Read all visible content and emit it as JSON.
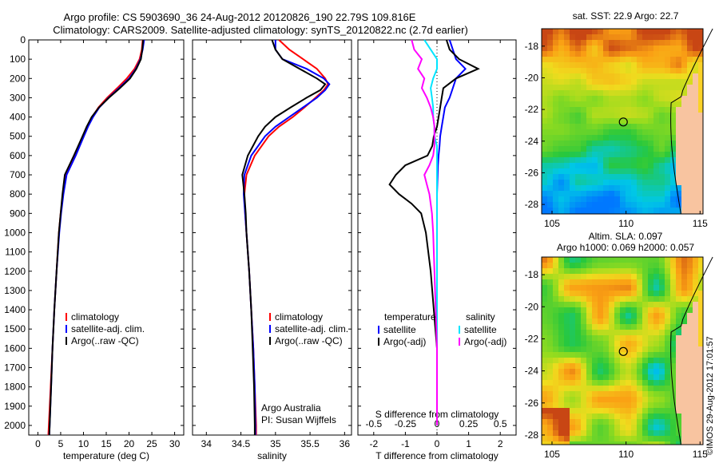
{
  "header": {
    "line1": "Argo profile: CS 5903690_36 24-Aug-2012 20120826_190 22.79S 109.816E",
    "line2": "Climatology: CARS2009. Satellite-adjusted climatology: synTS_20120822.nc (2.7d earlier)"
  },
  "chart_data": [
    {
      "type": "line",
      "xlabel": "temperature (deg C)",
      "ylabel": "",
      "xlim": [
        -2,
        32
      ],
      "ylim": [
        2050,
        0
      ],
      "xticks": [
        "0",
        "5",
        "10",
        "15",
        "20",
        "25",
        "30"
      ],
      "yticks": [
        "0",
        "100",
        "200",
        "300",
        "400",
        "500",
        "600",
        "700",
        "800",
        "900",
        "1000",
        "1100",
        "1200",
        "1300",
        "1400",
        "1500",
        "1600",
        "1700",
        "1800",
        "1900",
        "2000"
      ],
      "legend": [
        "climatology",
        "satellite-adj. clim.",
        "Argo(..raw -QC)"
      ],
      "colors": [
        "#ff0000",
        "#0000ff",
        "#000000"
      ],
      "depth": [
        0,
        50,
        100,
        150,
        200,
        250,
        300,
        350,
        400,
        450,
        500,
        600,
        700,
        800,
        900,
        1000,
        1200,
        1400,
        1600,
        1800,
        2000,
        2050
      ],
      "series": [
        {
          "name": "climatology",
          "values": [
            23.0,
            22.8,
            22.3,
            21.2,
            19.5,
            17.4,
            15.2,
            13.3,
            11.9,
            10.9,
            10.0,
            8.2,
            6.2,
            5.5,
            5.0,
            4.6,
            4.1,
            3.6,
            3.2,
            2.8,
            2.4,
            2.3
          ]
        },
        {
          "name": "satellite-adj. clim.",
          "values": [
            23.3,
            23.0,
            22.5,
            21.5,
            20.0,
            17.8,
            15.5,
            13.5,
            12.1,
            11.0,
            10.1,
            8.3,
            6.3,
            5.6,
            5.1,
            4.7,
            4.1,
            3.6,
            3.2,
            2.9,
            2.6,
            2.5
          ]
        },
        {
          "name": "Argo(..raw -QC)",
          "values": [
            23.1,
            22.9,
            22.6,
            21.6,
            20.2,
            18.0,
            15.6,
            13.4,
            11.8,
            10.7,
            9.8,
            7.9,
            5.9,
            5.4,
            5.0,
            4.6,
            4.1,
            3.6,
            3.2,
            2.9,
            2.6,
            2.5
          ]
        }
      ]
    },
    {
      "type": "line",
      "xlabel": "salinity",
      "xlim": [
        33.8,
        36.1
      ],
      "ylim": [
        2050,
        0
      ],
      "xticks": [
        "34",
        "34.5",
        "35",
        "35.5",
        "36"
      ],
      "legend": [
        "climatology",
        "satellite-adj. clim.",
        "Argo(..raw -QC)"
      ],
      "colors": [
        "#ff0000",
        "#0000ff",
        "#000000"
      ],
      "annotation": [
        "Argo Australia",
        "PI: Susan Wijffels"
      ],
      "depth": [
        0,
        50,
        100,
        150,
        200,
        230,
        260,
        300,
        350,
        400,
        450,
        500,
        600,
        700,
        800,
        900,
        1000,
        1200,
        1400,
        1600,
        1800,
        2000,
        2050
      ],
      "series": [
        {
          "name": "climatology",
          "values": [
            35.05,
            35.2,
            35.4,
            35.6,
            35.72,
            35.76,
            35.7,
            35.58,
            35.42,
            35.25,
            35.05,
            34.9,
            34.7,
            34.58,
            34.55,
            34.56,
            34.58,
            34.62,
            34.65,
            34.68,
            34.7,
            34.72,
            34.72
          ]
        },
        {
          "name": "satellite-adj. clim.",
          "values": [
            35.0,
            35.0,
            35.1,
            35.45,
            35.7,
            35.78,
            35.72,
            35.6,
            35.4,
            35.2,
            35.0,
            34.85,
            34.65,
            34.55,
            34.54,
            34.56,
            34.58,
            34.62,
            34.65,
            34.68,
            34.7,
            34.71,
            34.71
          ]
        },
        {
          "name": "Argo(..raw -QC)",
          "values": [
            34.95,
            35.0,
            35.1,
            35.35,
            35.6,
            35.72,
            35.65,
            35.45,
            35.22,
            35.0,
            34.85,
            34.75,
            34.6,
            34.52,
            34.55,
            34.57,
            34.58,
            34.62,
            34.65,
            34.67,
            34.69,
            34.7,
            34.7
          ]
        }
      ]
    },
    {
      "type": "line",
      "xlabel": "T difference from climatology",
      "xlabel_top": "S difference from climatology",
      "xlim": [
        -2.5,
        2.5
      ],
      "ylim": [
        2050,
        0
      ],
      "xticks_bottom": [
        "-2",
        "-1",
        "0",
        "1",
        "2"
      ],
      "xticks_top": [
        "-0.5",
        "-0.25",
        "0",
        "0.25",
        "0.5"
      ],
      "legend_titles": [
        "temperature",
        "salinity"
      ],
      "legend_left": [
        "satellite",
        "Argo(-adj)"
      ],
      "legend_right": [
        "satellite",
        "Argo(-adj)"
      ],
      "colors": [
        "#0000ff",
        "#000000",
        "#00e5ff",
        "#ff00ff"
      ],
      "depth": [
        0,
        50,
        100,
        150,
        200,
        250,
        300,
        350,
        400,
        450,
        500,
        550,
        600,
        650,
        700,
        750,
        800,
        850,
        900,
        1000,
        1200,
        1400,
        1600,
        1800,
        2000
      ],
      "series": [
        {
          "name": "T satellite",
          "values": [
            0.4,
            0.5,
            0.6,
            0.9,
            0.6,
            0.5,
            0.4,
            0.25,
            0.2,
            0.15,
            0.1,
            0.08,
            0.05,
            0.03,
            0.02,
            0.01,
            0.0,
            0.0,
            0.0,
            0.0,
            0.0,
            0.0,
            0.0,
            0.0,
            0.0
          ]
        },
        {
          "name": "T Argo(-adj)",
          "values": [
            0.3,
            0.4,
            0.7,
            1.3,
            0.6,
            0.2,
            0.15,
            0.1,
            0.05,
            0.0,
            -0.1,
            -0.15,
            -0.3,
            -1.0,
            -1.3,
            -1.5,
            -1.2,
            -0.8,
            -0.5,
            -0.35,
            -0.2,
            -0.1,
            0.0,
            0.0,
            0.0
          ]
        },
        {
          "name": "S satellite",
          "values": [
            -0.1,
            -0.05,
            0.0,
            0.0,
            -0.03,
            -0.05,
            -0.04,
            -0.03,
            -0.03,
            -0.02,
            -0.02,
            0.0,
            0.0,
            0.0,
            0.0,
            0.0,
            0.0,
            0.0,
            0.0,
            0.0,
            0.0,
            0.0,
            0.0,
            0.0,
            0.0
          ]
        },
        {
          "name": "S Argo(-adj)",
          "values": [
            -0.2,
            -0.18,
            -0.12,
            -0.15,
            -0.1,
            -0.12,
            -0.08,
            -0.05,
            -0.03,
            -0.02,
            -0.02,
            -0.02,
            -0.03,
            -0.06,
            -0.1,
            -0.08,
            -0.06,
            -0.05,
            -0.04,
            -0.03,
            -0.02,
            -0.01,
            0.0,
            0.0,
            0.0
          ]
        }
      ]
    },
    {
      "type": "heatmap",
      "title": "sat. SST: 22.9 Argo: 22.7",
      "xticks": [
        "105",
        "110",
        "115"
      ],
      "yticks": [
        "-18",
        "-20",
        "-22",
        "-24",
        "-26",
        "-28"
      ],
      "xlim": [
        104.3,
        115.2
      ],
      "ylim": [
        -28.6,
        -16.9
      ],
      "marker": {
        "lon": 109.816,
        "lat": -22.79
      }
    },
    {
      "type": "heatmap",
      "title": "Altim. SLA: 0.097",
      "subtitle": "Argo h1000: 0.069 h2000: 0.057",
      "xticks": [
        "105",
        "110",
        "115"
      ],
      "yticks": [
        "-18",
        "-20",
        "-22",
        "-24",
        "-26",
        "-28"
      ],
      "xlim": [
        104.3,
        115.2
      ],
      "ylim": [
        -28.6,
        -16.9
      ],
      "marker": {
        "lon": 109.816,
        "lat": -22.79
      }
    }
  ],
  "footer": {
    "credit": "©IMOS 29-Aug-2012 17:01:57"
  }
}
